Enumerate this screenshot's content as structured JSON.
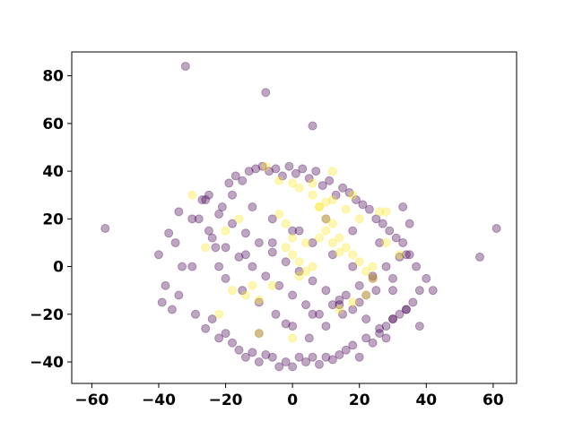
{
  "chart_data": {
    "type": "scatter",
    "title": "",
    "xlabel": "",
    "ylabel": "",
    "xlim": [
      -66,
      67
    ],
    "ylim": [
      -49,
      90
    ],
    "xticks": [
      -60,
      -40,
      -20,
      0,
      20,
      40,
      60
    ],
    "yticks": [
      -40,
      -20,
      0,
      20,
      40,
      60,
      80
    ],
    "grid": false,
    "legend": "none",
    "colors": {
      "class_0": "#440154",
      "class_1": "#fde725"
    },
    "marker_alpha": 0.35,
    "series": [
      {
        "class": "class_0",
        "x": [
          -32,
          -8,
          6,
          -56,
          56,
          61,
          -40,
          -38,
          -39,
          -37,
          -35,
          -34,
          -36,
          -33,
          -34,
          -30,
          -29,
          -27,
          -26,
          -25,
          -24,
          -23,
          -22,
          -21,
          -20,
          -19,
          -18,
          -17,
          -16,
          -15,
          -14,
          -13,
          -12,
          -11,
          -10,
          -9,
          -8,
          -7,
          -6,
          -5,
          -4,
          -3,
          -2,
          -1,
          0,
          1,
          2,
          3,
          4,
          5,
          6,
          7,
          8,
          9,
          10,
          11,
          12,
          13,
          14,
          15,
          16,
          17,
          18,
          19,
          20,
          21,
          22,
          23,
          24,
          25,
          26,
          27,
          28,
          29,
          30,
          31,
          32,
          33,
          34,
          35,
          36,
          37,
          38,
          40,
          42,
          -28,
          -24,
          -20,
          -16,
          -12,
          -8,
          -4,
          0,
          4,
          8,
          12,
          16,
          20,
          24,
          28,
          32,
          -26,
          -22,
          -18,
          -14,
          -10,
          -6,
          -2,
          2,
          6,
          10,
          14,
          18,
          22,
          26,
          30,
          34,
          -20,
          -15,
          -10,
          -5,
          0,
          5,
          10,
          15,
          20,
          25,
          30,
          -18,
          -12,
          -6,
          0,
          6,
          12,
          18,
          24,
          30,
          -22,
          -14,
          -6,
          2,
          10,
          18,
          26,
          34,
          -10,
          -2,
          6,
          14,
          22,
          -30,
          -25,
          35,
          38,
          28,
          33
        ],
        "y": [
          84,
          73,
          59,
          16,
          4,
          16,
          5,
          -8,
          -15,
          14,
          10,
          23,
          -18,
          0,
          -12,
          20,
          -20,
          28,
          -26,
          30,
          -22,
          8,
          -30,
          25,
          -28,
          35,
          -32,
          38,
          -35,
          36,
          -38,
          40,
          -36,
          41,
          -40,
          42,
          -37,
          40,
          -38,
          41,
          -42,
          38,
          -40,
          42,
          -42,
          39,
          -38,
          41,
          -40,
          37,
          -38,
          40,
          -41,
          34,
          -38,
          36,
          -39,
          30,
          -37,
          33,
          -35,
          31,
          -33,
          28,
          -38,
          26,
          -30,
          24,
          -32,
          20,
          -28,
          18,
          -25,
          15,
          -22,
          12,
          -20,
          10,
          -18,
          5,
          -15,
          0,
          -10,
          -5,
          -10,
          20,
          12,
          8,
          4,
          0,
          -4,
          -8,
          -12,
          -16,
          -20,
          -16,
          -12,
          -8,
          -4,
          0,
          4,
          28,
          22,
          18,
          14,
          10,
          6,
          2,
          -2,
          -6,
          -10,
          -14,
          -18,
          -22,
          -26,
          -22,
          -18,
          -5,
          -10,
          -15,
          -20,
          -25,
          -30,
          -25,
          -20,
          -15,
          -10,
          -5,
          30,
          25,
          20,
          15,
          10,
          5,
          0,
          -5,
          -10,
          0,
          5,
          10,
          15,
          20,
          15,
          10,
          5,
          -28,
          -24,
          -20,
          -16,
          -12,
          0,
          15,
          18,
          -25,
          -30,
          25
        ]
      },
      {
        "class": "class_1",
        "x": [
          -30,
          -8,
          -4,
          0,
          2,
          6,
          8,
          10,
          12,
          14,
          16,
          18,
          20,
          22,
          24,
          26,
          28,
          -18,
          -14,
          -12,
          -10,
          -6,
          -2,
          0,
          2,
          4,
          8,
          10,
          12,
          14,
          6,
          4,
          2,
          0,
          -2,
          -4,
          -16,
          -20,
          -26,
          8,
          10,
          12,
          16,
          20,
          24,
          28,
          32,
          14,
          18,
          22,
          -22,
          -10,
          0,
          6,
          12,
          18
        ],
        "y": [
          30,
          42,
          36,
          35,
          33,
          30,
          25,
          20,
          18,
          12,
          8,
          5,
          2,
          -2,
          0,
          23,
          23,
          -10,
          -12,
          -8,
          -14,
          -8,
          8,
          5,
          2,
          10,
          12,
          15,
          10,
          6,
          0,
          -2,
          -4,
          12,
          18,
          22,
          20,
          15,
          8,
          25,
          27,
          28,
          24,
          20,
          -5,
          10,
          5,
          -18,
          -15,
          -12,
          -20,
          -28,
          -30,
          35,
          40,
          30
        ]
      }
    ]
  }
}
